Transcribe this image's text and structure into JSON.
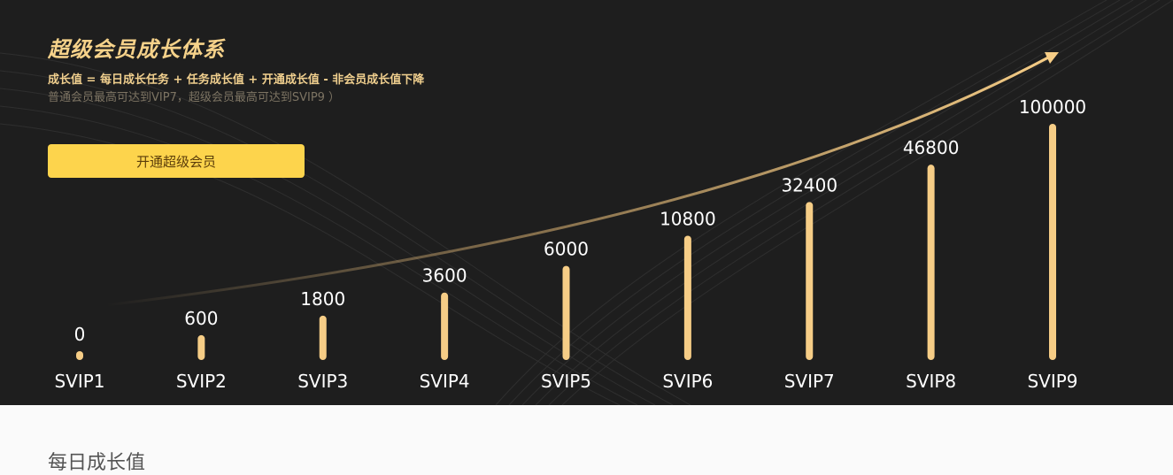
{
  "hero": {
    "title": "超级会员成长体系",
    "formula": "成长值 = 每日成长任务 + 任务成长值 + 开通成长值 - 非会员成长值下降",
    "note": "普通会员最高可达到VIP7，超级会员最高可达到SVIP9 ）",
    "cta_label": "开通超级会员"
  },
  "colors": {
    "background": "#1e1e1e",
    "bar": "#f6cd86",
    "label": "#ffffff",
    "accent": "#fdd44c"
  },
  "chart_data": {
    "type": "bar",
    "categories": [
      "SVIP1",
      "SVIP2",
      "SVIP3",
      "SVIP4",
      "SVIP5",
      "SVIP6",
      "SVIP7",
      "SVIP8",
      "SVIP9"
    ],
    "values": [
      0,
      600,
      1800,
      3600,
      6000,
      10800,
      32400,
      46800,
      100000
    ],
    "value_labels": [
      "0",
      "600",
      "1800",
      "3600",
      "6000",
      "10800",
      "32400",
      "46800",
      "100000"
    ],
    "scale": "non-linear (rank-based)",
    "trend_arrow": true,
    "grid": false,
    "legend": "none"
  },
  "section": {
    "title": "每日成长值"
  }
}
